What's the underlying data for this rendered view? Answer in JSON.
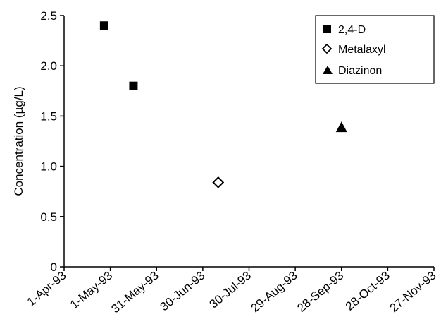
{
  "chart_data": {
    "type": "scatter",
    "title": "",
    "xlabel": "",
    "ylabel": "Concentration (µg/L)",
    "x_ticks": [
      "1-Apr-93",
      "1-May-93",
      "31-May-93",
      "30-Jun-93",
      "30-Jul-93",
      "29-Aug-93",
      "28-Sep-93",
      "28-Oct-93",
      "27-Nov-93"
    ],
    "xlim": [
      "1993-04-01",
      "1993-11-27"
    ],
    "y_ticks": [
      "0",
      "0.5",
      "1.0",
      "1.5",
      "2.0",
      "2.5"
    ],
    "ylim": [
      0,
      2.5
    ],
    "grid": false,
    "legend_position": "top-right",
    "series": [
      {
        "name": "2,4-D",
        "marker": "filled-square",
        "color": "#000000",
        "points": [
          {
            "x": "1993-04-27",
            "y": 2.4
          },
          {
            "x": "1993-05-16",
            "y": 1.8
          }
        ]
      },
      {
        "name": "Metalaxyl",
        "marker": "open-diamond",
        "color": "#000000",
        "points": [
          {
            "x": "1993-07-10",
            "y": 0.84
          }
        ]
      },
      {
        "name": "Diazinon",
        "marker": "filled-triangle",
        "color": "#000000",
        "points": [
          {
            "x": "1993-09-28",
            "y": 1.39
          }
        ]
      }
    ]
  }
}
